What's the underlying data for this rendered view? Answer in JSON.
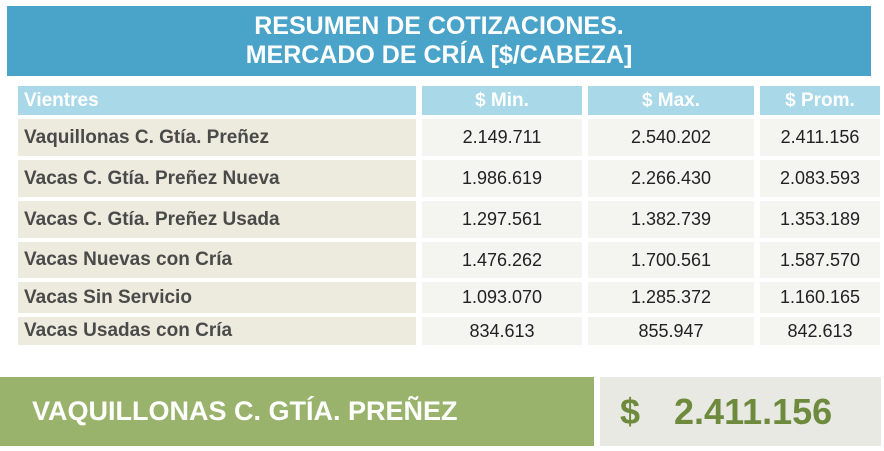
{
  "title": {
    "line1": "RESUMEN DE COTIZACIONES.",
    "line2": "MERCADO DE CRÍA [$/CABEZA]"
  },
  "table": {
    "headers": [
      "Vientres",
      "$ Min.",
      "$ Max.",
      "$ Prom."
    ],
    "rows": [
      {
        "name": "Vaquillonas C. Gtía. Preñez",
        "min": "2.149.711",
        "max": "2.540.202",
        "prom": "2.411.156"
      },
      {
        "name": "Vacas C. Gtía. Preñez Nueva",
        "min": "1.986.619",
        "max": "2.266.430",
        "prom": "2.083.593"
      },
      {
        "name": "Vacas C. Gtía. Preñez Usada",
        "min": "1.297.561",
        "max": "1.382.739",
        "prom": "1.353.189"
      },
      {
        "name": "Vacas Nuevas con Cría",
        "min": "1.476.262",
        "max": "1.700.561",
        "prom": "1.587.570"
      },
      {
        "name": "Vacas Sin Servicio",
        "min": "1.093.070",
        "max": "1.285.372",
        "prom": "1.160.165"
      },
      {
        "name": "Vacas Usadas con Cría",
        "min": "834.613",
        "max": "855.947",
        "prom": "842.613"
      }
    ]
  },
  "highlight": {
    "label": "VAQUILLONAS C. GTÍA. PREÑEZ",
    "currency": "$",
    "value": "2.411.156"
  },
  "colors": {
    "title_bg": "#4aa3c8",
    "header_bg": "#a9d8e8",
    "name_cell_bg": "#ecebdd",
    "highlight_bg": "#99b36d",
    "highlight_value": "#6d8a3d"
  }
}
